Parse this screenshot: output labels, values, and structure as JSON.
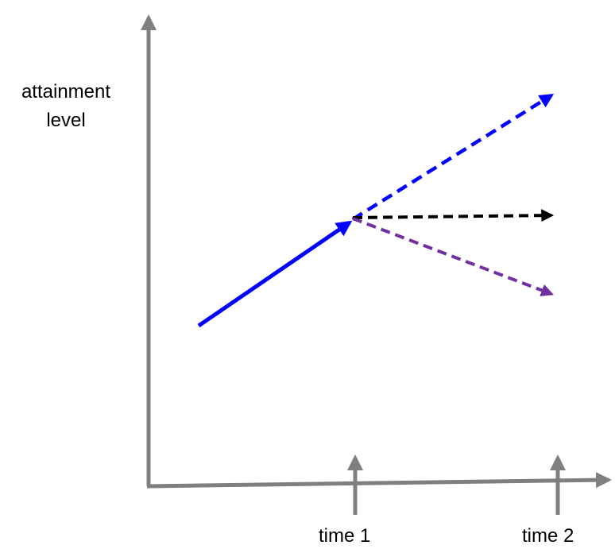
{
  "diagram": {
    "y_axis_label_line1": "attainment",
    "y_axis_label_line2": "level",
    "time1_label": "time 1",
    "time2_label": "time 2"
  },
  "colors": {
    "axis": "#7f7f7f",
    "observed_trend": "#0000ff",
    "projection_up": "#0000ff",
    "projection_flat": "#000000",
    "projection_down": "#7030a0"
  }
}
